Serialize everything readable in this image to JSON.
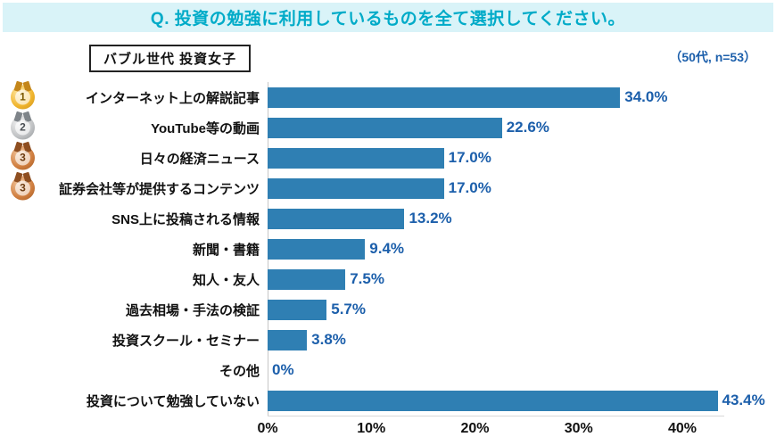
{
  "header": {
    "question": "Q. 投資の勉強に利用しているものを全て選択してください。"
  },
  "meta": {
    "group_label": "バブル世代 投資女子",
    "sample_label": "（50代, n=53）"
  },
  "colors": {
    "header_bg": "#d9f3f8",
    "header_text": "#00abc8",
    "bar": "#2f7fb3",
    "value_text": "#1c5fab",
    "sample_text": "#1c5fab"
  },
  "chart_data": {
    "type": "bar",
    "orientation": "horizontal",
    "title": "Q. 投資の勉強に利用しているものを全て選択してください。",
    "group": "バブル世代 投資女子",
    "sample": "50代, n=53",
    "categories": [
      "インターネット上の解説記事",
      "YouTube等の動画",
      "日々の経済ニュース",
      "証券会社等が提供するコンテンツ",
      "SNS上に投稿される情報",
      "新聞・書籍",
      "知人・友人",
      "過去相場・手法の検証",
      "投資スクール・セミナー",
      "その他",
      "投資について勉強していない"
    ],
    "values": [
      34.0,
      22.6,
      17.0,
      17.0,
      13.2,
      9.4,
      7.5,
      5.7,
      3.8,
      0,
      43.4
    ],
    "value_labels": [
      "34.0%",
      "22.6%",
      "17.0%",
      "17.0%",
      "13.2%",
      "9.4%",
      "7.5%",
      "5.7%",
      "3.8%",
      "0%",
      "43.4%"
    ],
    "ranks": [
      1,
      2,
      3,
      3,
      null,
      null,
      null,
      null,
      null,
      null,
      null
    ],
    "x_ticks": [
      "0%",
      "10%",
      "20%",
      "30%",
      "40%"
    ],
    "xlim": [
      0,
      45
    ],
    "grid": false,
    "legend": "none",
    "bar_color": "#2f7fb3",
    "value_label_color": "#1c5fab"
  }
}
